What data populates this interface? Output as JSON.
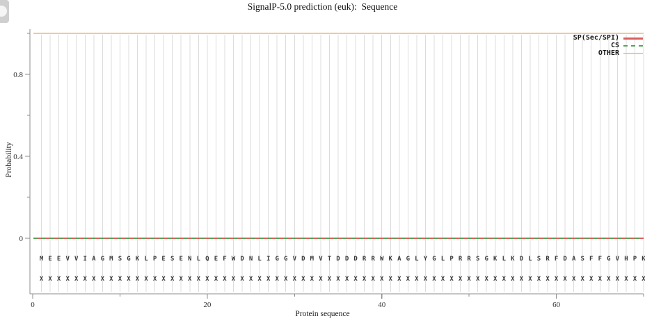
{
  "chart_data": {
    "type": "line",
    "title": "SignalP-5.0 prediction (euk):  Sequence",
    "xlabel": "Protein sequence",
    "ylabel": "Probability",
    "xlim": [
      0,
      70
    ],
    "ylim": [
      0,
      1
    ],
    "x_ticks": [
      0,
      20,
      40,
      60
    ],
    "x_minor_ticks": [
      10,
      30,
      50,
      70
    ],
    "y_ticks": [
      0,
      0.4,
      0.8
    ],
    "y_minor_ticks": [
      0.2,
      0.6,
      1.0
    ],
    "grid": "vertical gridline at every residue position",
    "legend_position": "top-right",
    "sequence": "MEEVVIAGMSGKLPESENLQEFWDNLIGGVDMVTDDDRRWKAGLYGLPRRSGKLKDLSRFDASFFGVHPK",
    "sequence_length": 70,
    "marker_row": "XXXXXXXXXXXXXXXXXXXXXXXXXXXXXXXXXXXXXXXXXXXXXXXXXXXXXXXXXXXXXXXXXXXXXX",
    "series": [
      {
        "name": "SP(Sec/SPI)",
        "style": "solid",
        "color": "#d85f5f",
        "x_range": [
          1,
          70
        ],
        "y_constant": 0.0
      },
      {
        "name": "CS",
        "style": "dashed",
        "color": "#55a455",
        "x_range": [
          1,
          70
        ],
        "y_constant": 0.0
      },
      {
        "name": "OTHER",
        "style": "solid",
        "color": "#f2c893",
        "x_range": [
          1,
          70
        ],
        "y_constant": 1.0
      }
    ],
    "colors": {
      "grid": "#dcdcdc",
      "axis": "#8c8c8c",
      "tick_text": "#333333",
      "sequence_text": "#3a3a3a",
      "background": "#ffffff"
    }
  }
}
